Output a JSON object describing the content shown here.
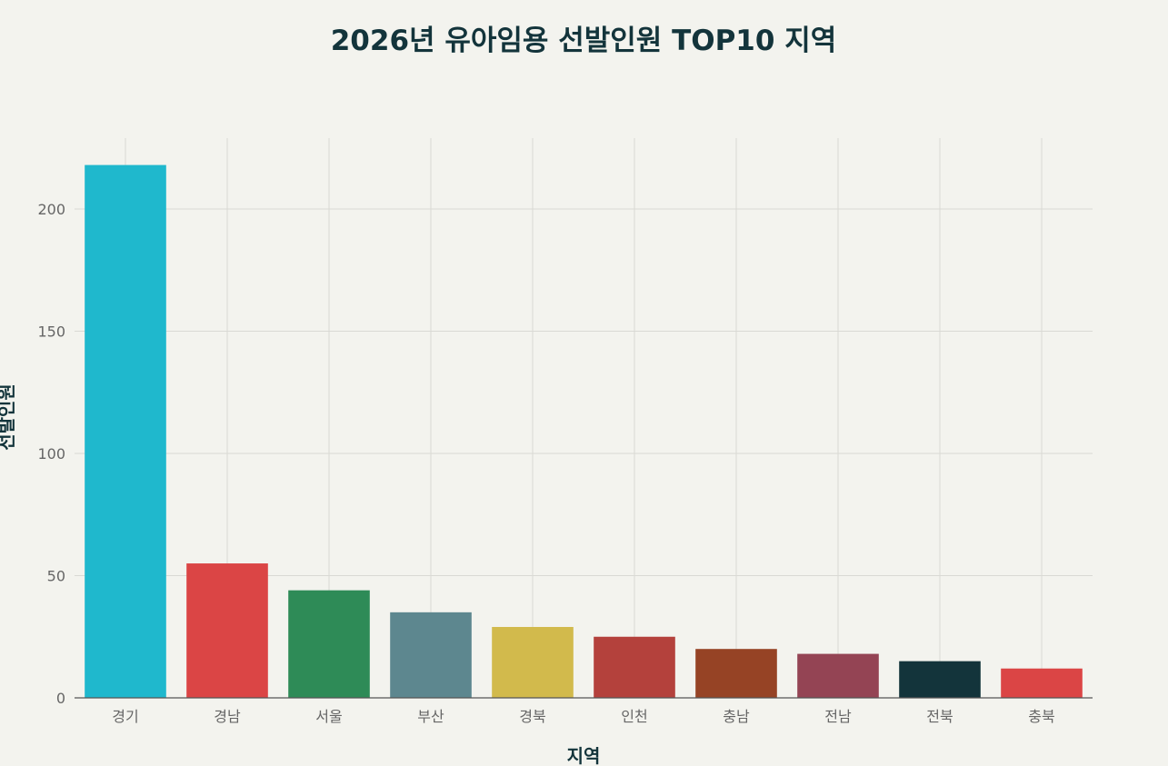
{
  "chart_data": {
    "type": "bar",
    "title": "2026년 유아임용 선발인원 TOP10 지역",
    "xlabel": "지역",
    "ylabel": "선발인원",
    "categories": [
      "경기",
      "경남",
      "서울",
      "부산",
      "경북",
      "인천",
      "충남",
      "전남",
      "전북",
      "충북"
    ],
    "values": [
      218,
      55,
      44,
      35,
      29,
      25,
      20,
      18,
      15,
      12
    ],
    "colors": [
      "#1fb8cd",
      "#db4545",
      "#2e8b57",
      "#5d878f",
      "#d2ba4c",
      "#b4413c",
      "#964325",
      "#944454",
      "#13343b",
      "#db4545"
    ],
    "ylim": [
      0,
      229
    ],
    "yticks": [
      0,
      50,
      100,
      150,
      200
    ],
    "grid": true,
    "legend": "none"
  }
}
